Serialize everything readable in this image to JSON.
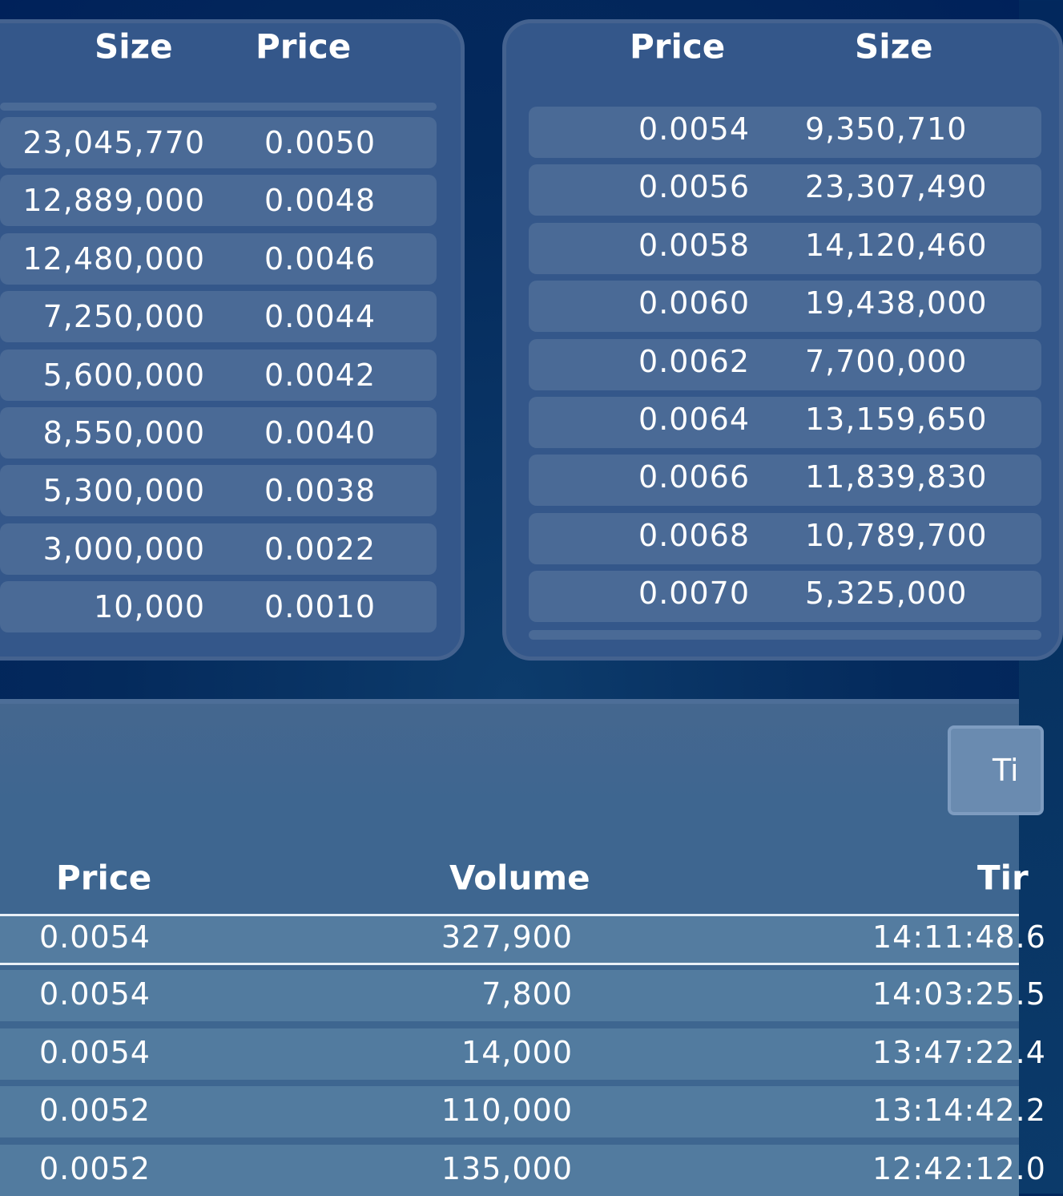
{
  "bids": {
    "headers": {
      "size": "Size",
      "price": "Price"
    },
    "rows": [
      {
        "size": "23,045,770",
        "price": "0.0050"
      },
      {
        "size": "12,889,000",
        "price": "0.0048"
      },
      {
        "size": "12,480,000",
        "price": "0.0046"
      },
      {
        "size": "7,250,000",
        "price": "0.0044"
      },
      {
        "size": "5,600,000",
        "price": "0.0042"
      },
      {
        "size": "8,550,000",
        "price": "0.0040"
      },
      {
        "size": "5,300,000",
        "price": "0.0038"
      },
      {
        "size": "3,000,000",
        "price": "0.0022"
      },
      {
        "size": "10,000",
        "price": "0.0010"
      }
    ]
  },
  "asks": {
    "headers": {
      "price": "Price",
      "size": "Size"
    },
    "rows": [
      {
        "price": "0.0054",
        "size": "9,350,710"
      },
      {
        "price": "0.0056",
        "size": "23,307,490"
      },
      {
        "price": "0.0058",
        "size": "14,120,460"
      },
      {
        "price": "0.0060",
        "size": "19,438,000"
      },
      {
        "price": "0.0062",
        "size": "7,700,000"
      },
      {
        "price": "0.0064",
        "size": "13,159,650"
      },
      {
        "price": "0.0066",
        "size": "11,839,830"
      },
      {
        "price": "0.0068",
        "size": "10,789,700"
      },
      {
        "price": "0.0070",
        "size": "5,325,000"
      }
    ]
  },
  "trades": {
    "toggle_label": "Ti",
    "headers": {
      "price": "Price",
      "volume": "Volume",
      "time": "Tir"
    },
    "rows": [
      {
        "price": "0.0054",
        "volume": "327,900",
        "time": "14:11:48.6"
      },
      {
        "price": "0.0054",
        "volume": "7,800",
        "time": "14:03:25.5"
      },
      {
        "price": "0.0054",
        "volume": "14,000",
        "time": "13:47:22.4"
      },
      {
        "price": "0.0052",
        "volume": "110,000",
        "time": "13:14:42.2"
      },
      {
        "price": "0.0052",
        "volume": "135,000",
        "time": "12:42:12.0"
      }
    ]
  }
}
